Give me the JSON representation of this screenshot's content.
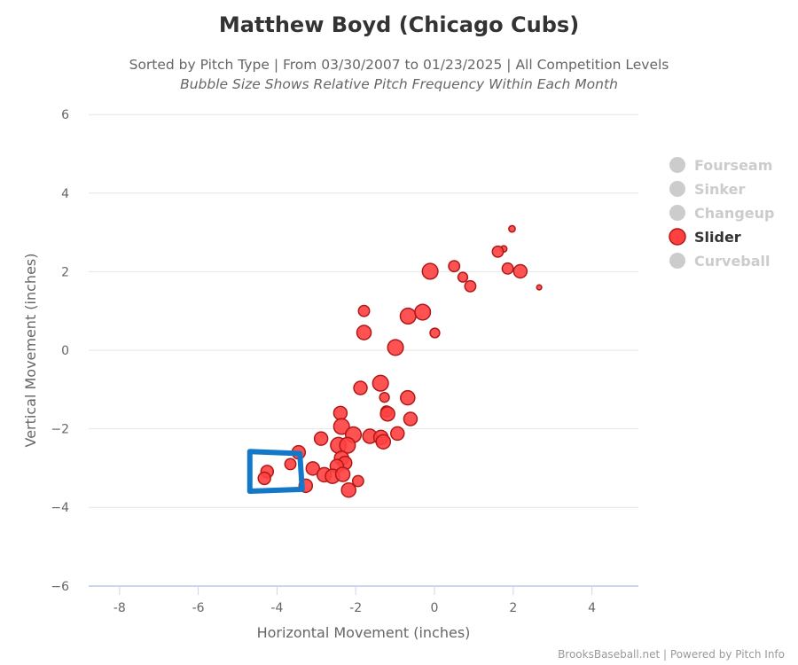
{
  "chart_data": {
    "type": "scatter",
    "title": "Matthew Boyd (Chicago Cubs)",
    "subtitle": "Sorted by Pitch Type | From 03/30/2007 to 01/23/2025 | All Competition Levels",
    "subtitle2": "Bubble Size Shows Relative Pitch Frequency Within Each Month",
    "xlabel": "Horizontal Movement (inches)",
    "ylabel": "Vertical Movement (inches)",
    "xlim": [
      -8.9,
      5.2
    ],
    "ylim": [
      -6,
      6
    ],
    "xticks": [
      "-8",
      "-6",
      "-4",
      "-2",
      "0",
      "2",
      "4"
    ],
    "yticks": [
      "6",
      "4",
      "2",
      "0",
      "−2",
      "−4",
      "−6"
    ],
    "xtick_values": [
      -8,
      -6,
      -4,
      -2,
      0,
      2,
      4
    ],
    "ytick_values": [
      6,
      4,
      2,
      0,
      -2,
      -4,
      -6
    ],
    "grid": "horizontal",
    "legend_placement": "right",
    "legend": [
      {
        "name": "Fourseam",
        "active": false,
        "color": "#cccccc"
      },
      {
        "name": "Sinker",
        "active": false,
        "color": "#cccccc"
      },
      {
        "name": "Changeup",
        "active": false,
        "color": "#cccccc"
      },
      {
        "name": "Slider",
        "active": true,
        "color": "#ff4040"
      },
      {
        "name": "Curveball",
        "active": false,
        "color": "#cccccc"
      }
    ],
    "series": [
      {
        "name": "Slider",
        "color": "#ff4040",
        "points": [
          [
            1.97,
            3.09,
            1
          ],
          [
            1.76,
            2.58,
            1
          ],
          [
            1.61,
            2.51,
            2
          ],
          [
            1.86,
            2.08,
            2
          ],
          [
            2.18,
            2.01,
            2.5
          ],
          [
            2.66,
            1.6,
            0.7
          ],
          [
            -0.11,
            2.01,
            3
          ],
          [
            0.5,
            2.14,
            2
          ],
          [
            0.72,
            1.86,
            1.7
          ],
          [
            0.91,
            1.63,
            2
          ],
          [
            -1.79,
            1.0,
            2
          ],
          [
            -1.79,
            0.45,
            2.7
          ],
          [
            -0.67,
            0.87,
            3
          ],
          [
            -0.3,
            0.97,
            3
          ],
          [
            0.01,
            0.44,
            1.7
          ],
          [
            -0.99,
            0.07,
            3
          ],
          [
            -1.88,
            -0.96,
            2.5
          ],
          [
            -1.37,
            -0.84,
            3
          ],
          [
            -1.27,
            -1.2,
            1.7
          ],
          [
            -0.68,
            -1.21,
            2.7
          ],
          [
            -1.22,
            -1.56,
            2
          ],
          [
            -1.19,
            -1.62,
            2.7
          ],
          [
            -0.61,
            -1.75,
            2.5
          ],
          [
            -2.39,
            -1.6,
            2.5
          ],
          [
            -2.36,
            -1.94,
            3
          ],
          [
            -2.06,
            -2.15,
            3
          ],
          [
            -1.64,
            -2.19,
            2.7
          ],
          [
            -1.36,
            -2.22,
            2.7
          ],
          [
            -1.3,
            -2.33,
            2.7
          ],
          [
            -0.94,
            -2.12,
            2.5
          ],
          [
            -2.88,
            -2.25,
            2.5
          ],
          [
            -2.44,
            -2.42,
            3
          ],
          [
            -2.21,
            -2.42,
            3
          ],
          [
            -3.45,
            -2.6,
            2.5
          ],
          [
            -2.36,
            -2.75,
            2.7
          ],
          [
            -2.27,
            -2.87,
            2.5
          ],
          [
            -2.48,
            -2.95,
            2.5
          ],
          [
            -3.09,
            -3.01,
            2.5
          ],
          [
            -3.66,
            -2.9,
            2
          ],
          [
            -4.25,
            -3.09,
            2.3
          ],
          [
            -4.32,
            -3.26,
            2.3
          ],
          [
            -2.8,
            -3.17,
            2.7
          ],
          [
            -2.59,
            -3.21,
            2.7
          ],
          [
            -2.33,
            -3.16,
            2.7
          ],
          [
            -1.94,
            -3.33,
            2
          ],
          [
            -3.27,
            -3.45,
            2.5
          ],
          [
            -2.18,
            -3.56,
            2.7
          ]
        ]
      }
    ],
    "annotation": {
      "type": "polygon",
      "color": "#1478c8",
      "points": [
        [
          -4.69,
          -2.58
        ],
        [
          -3.42,
          -2.63
        ],
        [
          -3.36,
          -3.54
        ],
        [
          -4.69,
          -3.59
        ]
      ]
    },
    "credit": "BrooksBaseball.net | Powered by Pitch Info"
  }
}
